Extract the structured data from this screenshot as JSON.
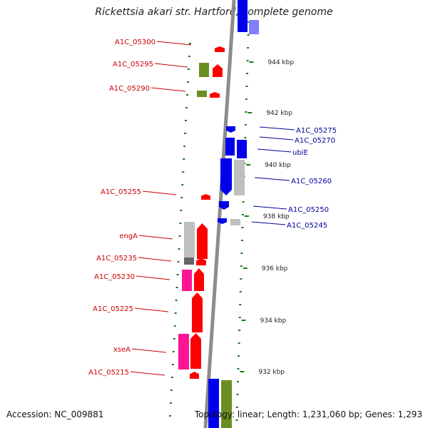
{
  "title": "Rickettsia akari str. Hartford, complete genome",
  "footer": {
    "accession": "Accession: NC_009881",
    "summary": "Topology: linear; Length: 1,231,060 bp; Genes: 1,293"
  },
  "colors": {
    "forward_label": "#cc0000",
    "reverse_label": "#000099",
    "backbone": "#8c8c8c",
    "tick": "#1a7a1a",
    "red_gene": "#ff0000",
    "blue_gene": "#0000ee",
    "olive_gene": "#6b8e23",
    "pink_gene": "#ff1493",
    "grey_gene": "#bfbfbf"
  },
  "scale_labels": [
    {
      "kbp": 944,
      "text": "944 kbp"
    },
    {
      "kbp": 942,
      "text": "942 kbp"
    },
    {
      "kbp": 940,
      "text": "940 kbp"
    },
    {
      "kbp": 938,
      "text": "938 kbp"
    },
    {
      "kbp": 936,
      "text": "936 kbp"
    },
    {
      "kbp": 934,
      "text": "934 kbp"
    },
    {
      "kbp": 932,
      "text": "932 kbp"
    }
  ],
  "left_labels": [
    {
      "text": "A1C_05300"
    },
    {
      "text": "A1C_05295"
    },
    {
      "text": "A1C_05290"
    },
    {
      "text": "A1C_05255"
    },
    {
      "text": "engA"
    },
    {
      "text": "A1C_05235"
    },
    {
      "text": "A1C_05230"
    },
    {
      "text": "A1C_05225"
    },
    {
      "text": "xseA"
    },
    {
      "text": "A1C_05215"
    }
  ],
  "right_labels": [
    {
      "text": "A1C_05275"
    },
    {
      "text": "A1C_05270"
    },
    {
      "text": "ubiE"
    },
    {
      "text": "A1C_05260"
    },
    {
      "text": "A1C_05250"
    },
    {
      "text": "A1C_05245"
    }
  ]
}
